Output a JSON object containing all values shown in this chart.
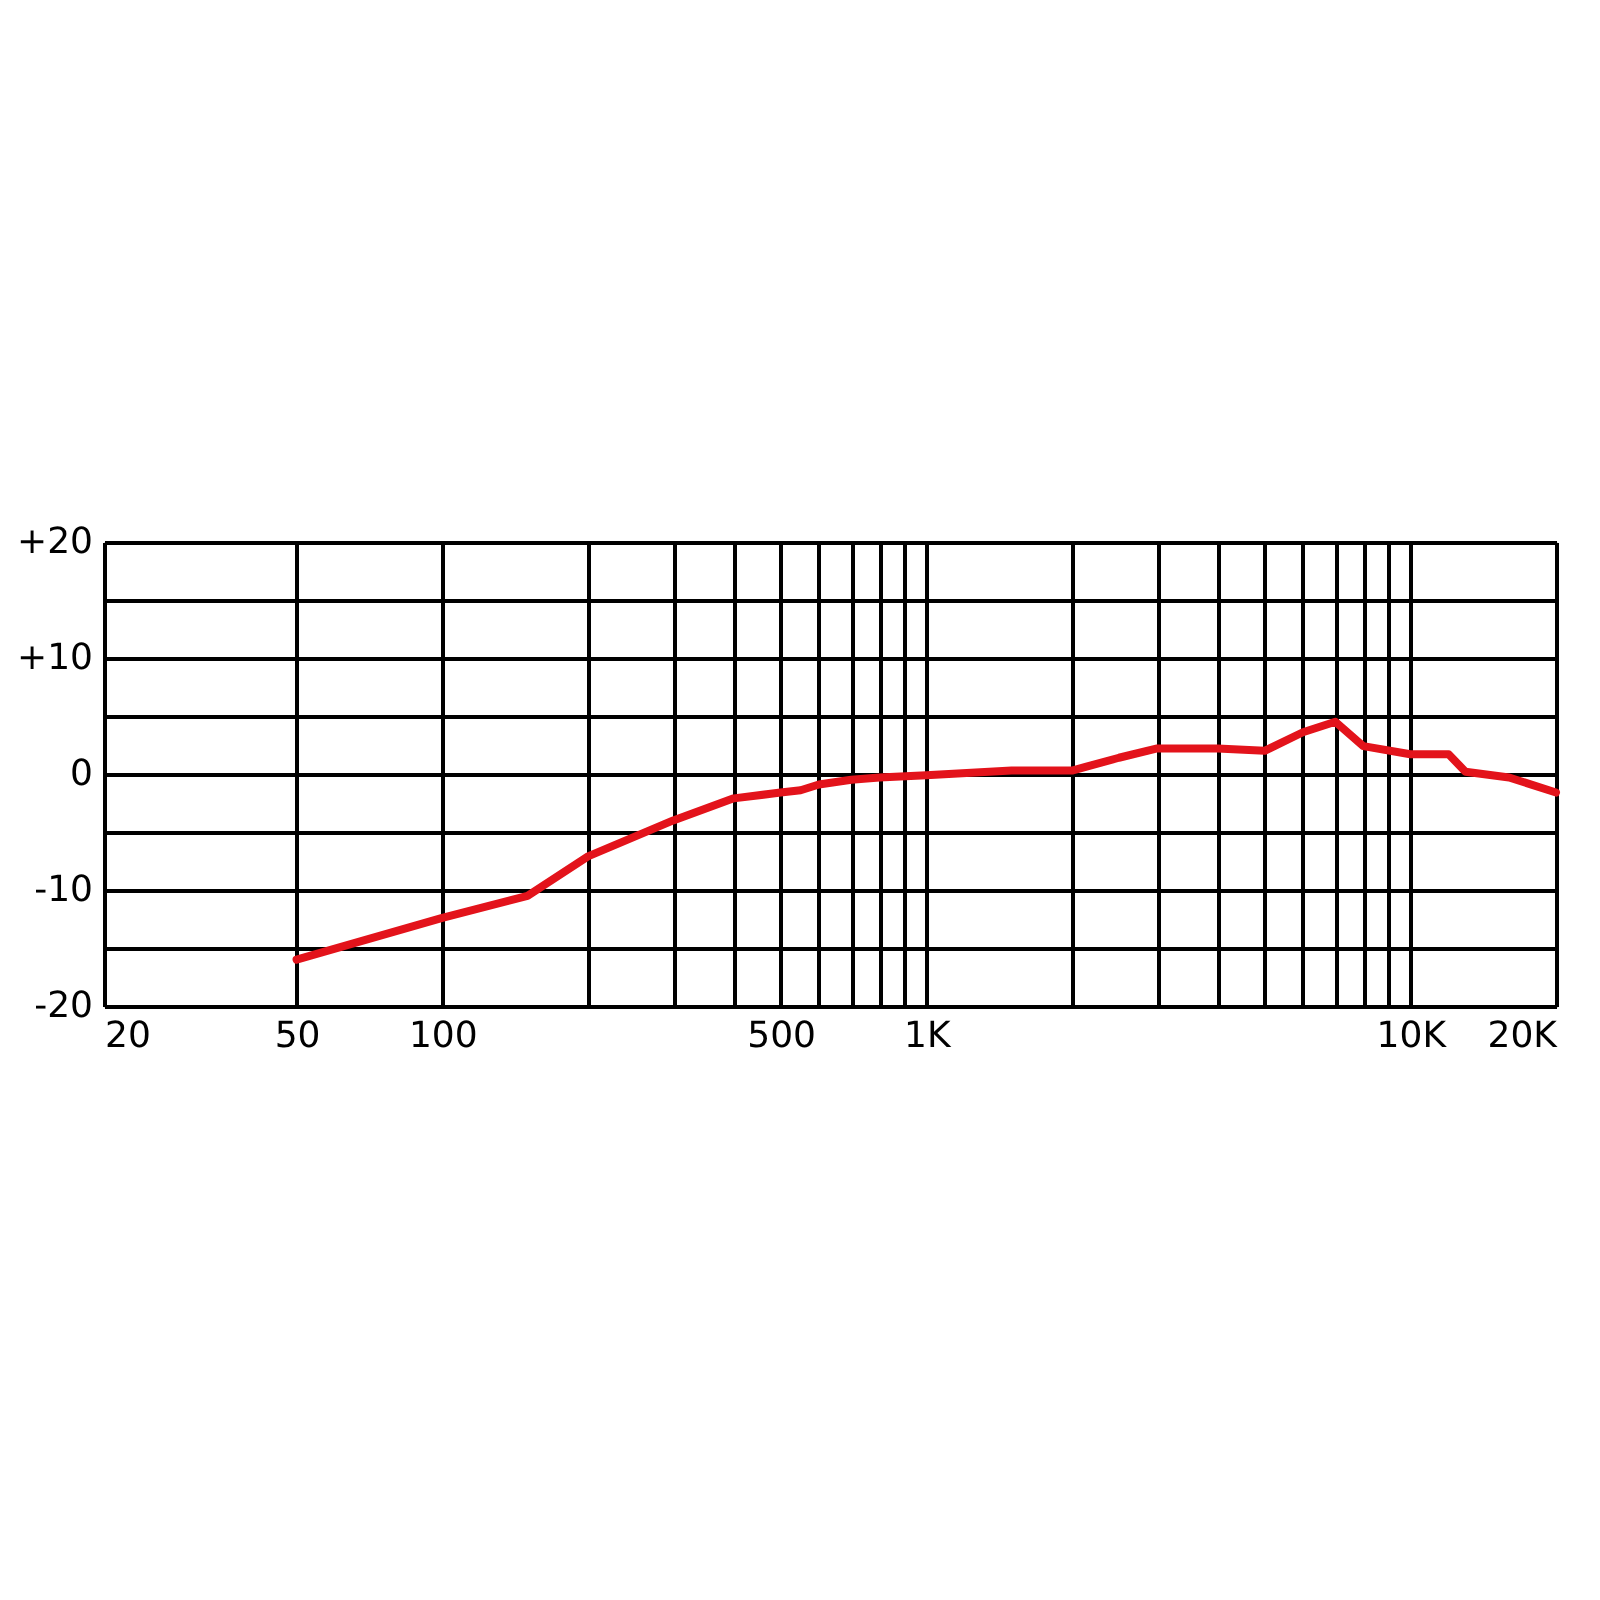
{
  "chart_data": {
    "type": "line",
    "log": "x",
    "grid": true,
    "legend": false,
    "marker": "none",
    "line_style": "solid",
    "x": [
      50,
      100,
      150,
      200,
      300,
      400,
      500,
      550,
      600,
      700,
      800,
      1000,
      1500,
      2000,
      2500,
      3000,
      4000,
      5000,
      6000,
      7000,
      8000,
      10000,
      12000,
      13000,
      16000,
      20000
    ],
    "series": [
      {
        "color": "#e3131b",
        "values": [
          -16,
          -12.4,
          -10.5,
          -7.1,
          -4.0,
          -2.1,
          -1.6,
          -1.4,
          -0.9,
          -0.5,
          -0.3,
          -0.1,
          0.3,
          0.3,
          1.4,
          2.2,
          2.2,
          2.0,
          3.6,
          4.5,
          2.4,
          1.7,
          1.7,
          0.2,
          -0.3,
          -1.6
        ]
      }
    ],
    "xlim": [
      20,
      20000
    ],
    "xticks": [
      20,
      50,
      100,
      {
        "value": 200,
        "label": null
      },
      {
        "value": 300,
        "label": null
      },
      {
        "value": 400,
        "label": null
      },
      500,
      {
        "value": 600,
        "label": null
      },
      {
        "value": 700,
        "label": null
      },
      {
        "value": 800,
        "label": null
      },
      {
        "value": 900,
        "label": null
      },
      {
        "value": 1000,
        "label": "1K"
      },
      {
        "value": 2000,
        "label": null
      },
      {
        "value": 3000,
        "label": null
      },
      {
        "value": 4000,
        "label": null
      },
      {
        "value": 5000,
        "label": null
      },
      {
        "value": 6000,
        "label": null
      },
      {
        "value": 7000,
        "label": null
      },
      {
        "value": 8000,
        "label": null
      },
      {
        "value": 9000,
        "label": null
      },
      {
        "value": 10000,
        "label": "10K"
      },
      {
        "value": 20000,
        "label": "20K"
      }
    ],
    "ylim": [
      -20,
      20
    ],
    "yticks": [
      -20,
      {
        "value": -15,
        "label": null
      },
      -10,
      {
        "value": -5,
        "label": null
      },
      0,
      {
        "value": 5,
        "label": null
      },
      {
        "value": 10,
        "label": "+10"
      },
      {
        "value": 15,
        "label": null
      },
      {
        "value": 20,
        "label": "+20"
      }
    ]
  }
}
